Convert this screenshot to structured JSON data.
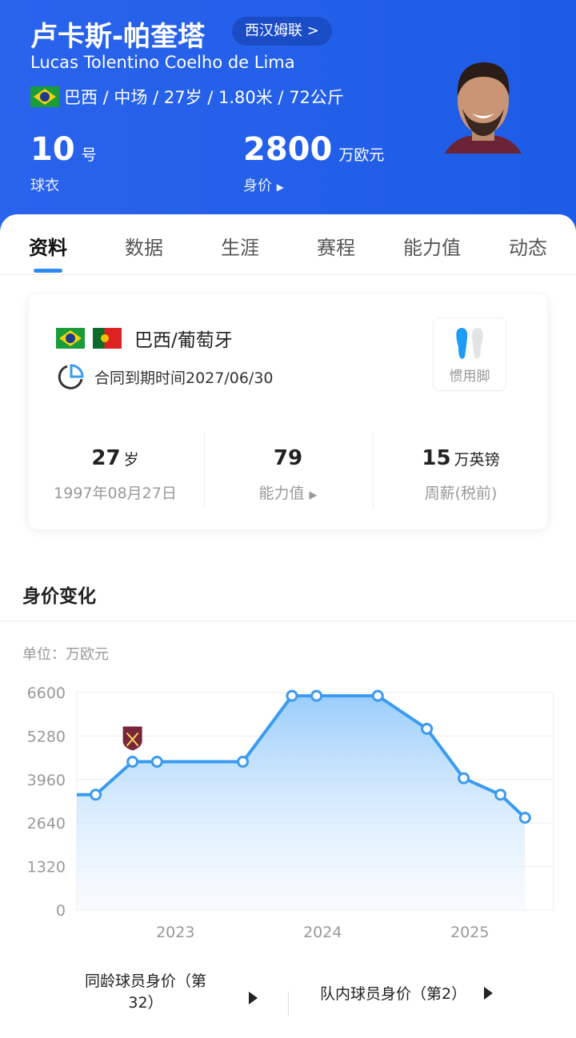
{
  "header": {
    "name_cn": "卢卡斯-帕奎塔",
    "club": "西汉姆联 >",
    "name_en": "Lucas Tolentino Coelho de Lima",
    "info": "巴西 / 中场 / 27岁 / 1.80米 / 72公斤",
    "shirt_number": "10",
    "shirt_unit": "号",
    "shirt_label": "球衣",
    "market_value": "2800",
    "market_value_unit": "万欧元",
    "market_value_label": "身价"
  },
  "tabs": [
    "资料",
    "数据",
    "生涯",
    "赛程",
    "能力值",
    "动态"
  ],
  "active_tab": "资料",
  "card": {
    "nationality": "巴西/葡萄牙",
    "contract": "合同到期时间2027/06/30",
    "foot_label": "惯用脚",
    "preferred_foot": "left",
    "age": "27",
    "age_unit": "岁",
    "birth": "1997年08月27日",
    "ability": "79",
    "ability_label": "能力值",
    "wage": "15",
    "wage_unit": "万英镑",
    "wage_label": "周薪(税前)"
  },
  "value_section": {
    "title": "身价变化",
    "unit": "单位：万欧元"
  },
  "chart_data": {
    "type": "area",
    "y_ticks": [
      0,
      1320,
      2640,
      3960,
      5280,
      6600
    ],
    "x_ticks": [
      "2023",
      "2024",
      "2025"
    ],
    "ylim": [
      0,
      6600
    ],
    "xlim": [
      "2022-05",
      "2025-08"
    ],
    "grid": true,
    "line_color": "#3a9bf0",
    "points": [
      {
        "x": "2022-06",
        "y": 3500
      },
      {
        "x": "2022-09",
        "y": 4500,
        "club_badge": "west-ham"
      },
      {
        "x": "2022-11",
        "y": 4500
      },
      {
        "x": "2023-06",
        "y": 4500
      },
      {
        "x": "2023-10",
        "y": 6500
      },
      {
        "x": "2023-12",
        "y": 6500
      },
      {
        "x": "2024-05",
        "y": 6500
      },
      {
        "x": "2024-09",
        "y": 5500
      },
      {
        "x": "2024-12",
        "y": 4000
      },
      {
        "x": "2025-03",
        "y": 3500
      },
      {
        "x": "2025-05",
        "y": 2800
      }
    ]
  },
  "bottom": {
    "peer_rank": "同龄球员身价（第32）",
    "team_rank": "队内球员身价（第2）"
  }
}
